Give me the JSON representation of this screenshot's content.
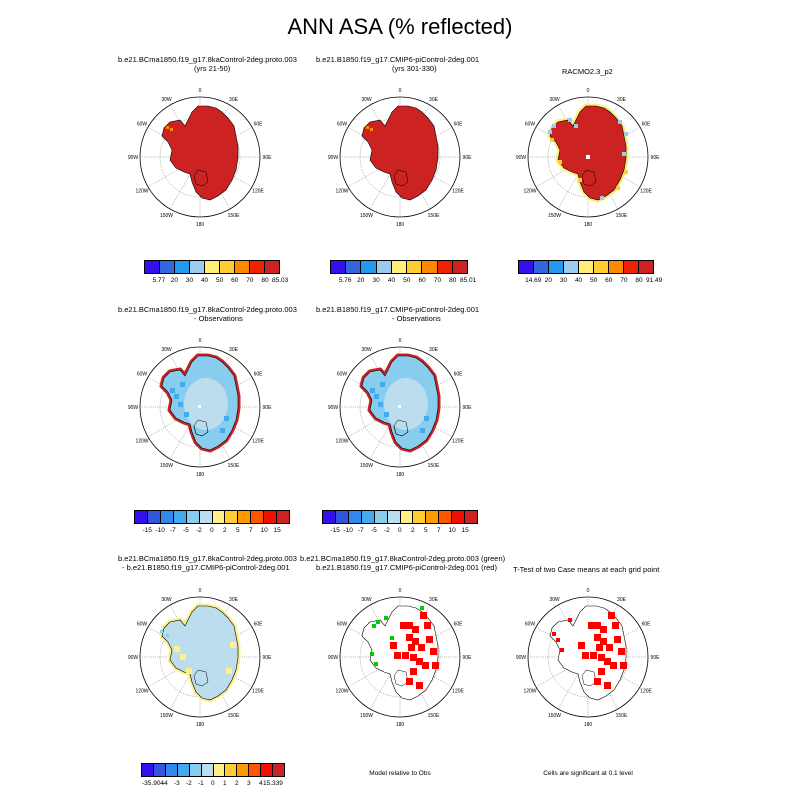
{
  "title": "ANN ASA (% reflected)",
  "panels": [
    {
      "id": "p1",
      "title": "b.e21.BCma1850.f19_g17.8kaControl-2deg.proto.003",
      "subtitle": "(yrs 21-50)",
      "kind": "model"
    },
    {
      "id": "p2",
      "title": "b.e21.B1850.f19_g17.CMIP6-piControl-2deg.001",
      "subtitle": "(yrs 301-330)",
      "kind": "model"
    },
    {
      "id": "p3",
      "title": "RACMO2.3_p2",
      "subtitle": "",
      "kind": "obs"
    },
    {
      "id": "p4",
      "title": "b.e21.BCma1850.f19_g17.8kaControl-2deg.proto.003",
      "subtitle": "- Observations",
      "kind": "diff"
    },
    {
      "id": "p5",
      "title": "b.e21.B1850.f19_g17.CMIP6-piControl-2deg.001",
      "subtitle": "- Observations",
      "kind": "diff"
    },
    {
      "id": "p7",
      "title": "b.e21.BCma1850.f19_g17.8kaControl-2deg.proto.003",
      "subtitle": "- b.e21.B1850.f19_g17.CMIP6-piControl-2deg.001",
      "kind": "casediff"
    },
    {
      "id": "p8",
      "title": "b.e21.BCma1850.f19_g17.8kaControl-2deg.proto.003 (green)",
      "subtitle": "b.e21.B1850.f19_g17.CMIP6-piControl-2deg.001 (red)",
      "kind": "relobs"
    },
    {
      "id": "p9",
      "title": "T-Test of two Case means at each grid point",
      "subtitle": "",
      "kind": "ttest"
    }
  ],
  "lon_labels": [
    "0",
    "30E",
    "60E",
    "90E",
    "120E",
    "150E",
    "180",
    "150W",
    "120W",
    "90W",
    "60W",
    "30W"
  ],
  "colorbars": {
    "abs1": {
      "labels": [
        "5.77",
        "20",
        "30",
        "40",
        "50",
        "60",
        "70",
        "80",
        "85.03"
      ]
    },
    "abs2": {
      "labels": [
        "5.76",
        "20",
        "30",
        "40",
        "50",
        "60",
        "70",
        "80",
        "85.01"
      ]
    },
    "abs3": {
      "labels": [
        "14.69",
        "20",
        "30",
        "40",
        "50",
        "60",
        "70",
        "80",
        "91.49"
      ]
    },
    "absColors": [
      "#3311ee",
      "#3366dd",
      "#2299ee",
      "#99ccee",
      "#ffee77",
      "#ffcc33",
      "#ff8800",
      "#ee2200",
      "#cc2222"
    ],
    "diff": {
      "labels": [
        "-15",
        "-10",
        "-7",
        "-5",
        "-2",
        "0",
        "2",
        "5",
        "7",
        "10",
        "15"
      ]
    },
    "diffColors": [
      "#3311ee",
      "#3355dd",
      "#3388ee",
      "#44aaee",
      "#88ccee",
      "#bbddee",
      "#fff088",
      "#ffcc33",
      "#ff9900",
      "#ff5500",
      "#ee1100",
      "#cc2222"
    ],
    "casediff": {
      "labels": [
        "-35.904",
        "-4",
        "-3",
        "-2",
        "-1",
        "0",
        "1",
        "2",
        "3",
        "4",
        "15.339"
      ]
    }
  },
  "notes": {
    "relobs": "Model relative to Obs",
    "ttest": "Cells are significant at 0.1 level"
  }
}
